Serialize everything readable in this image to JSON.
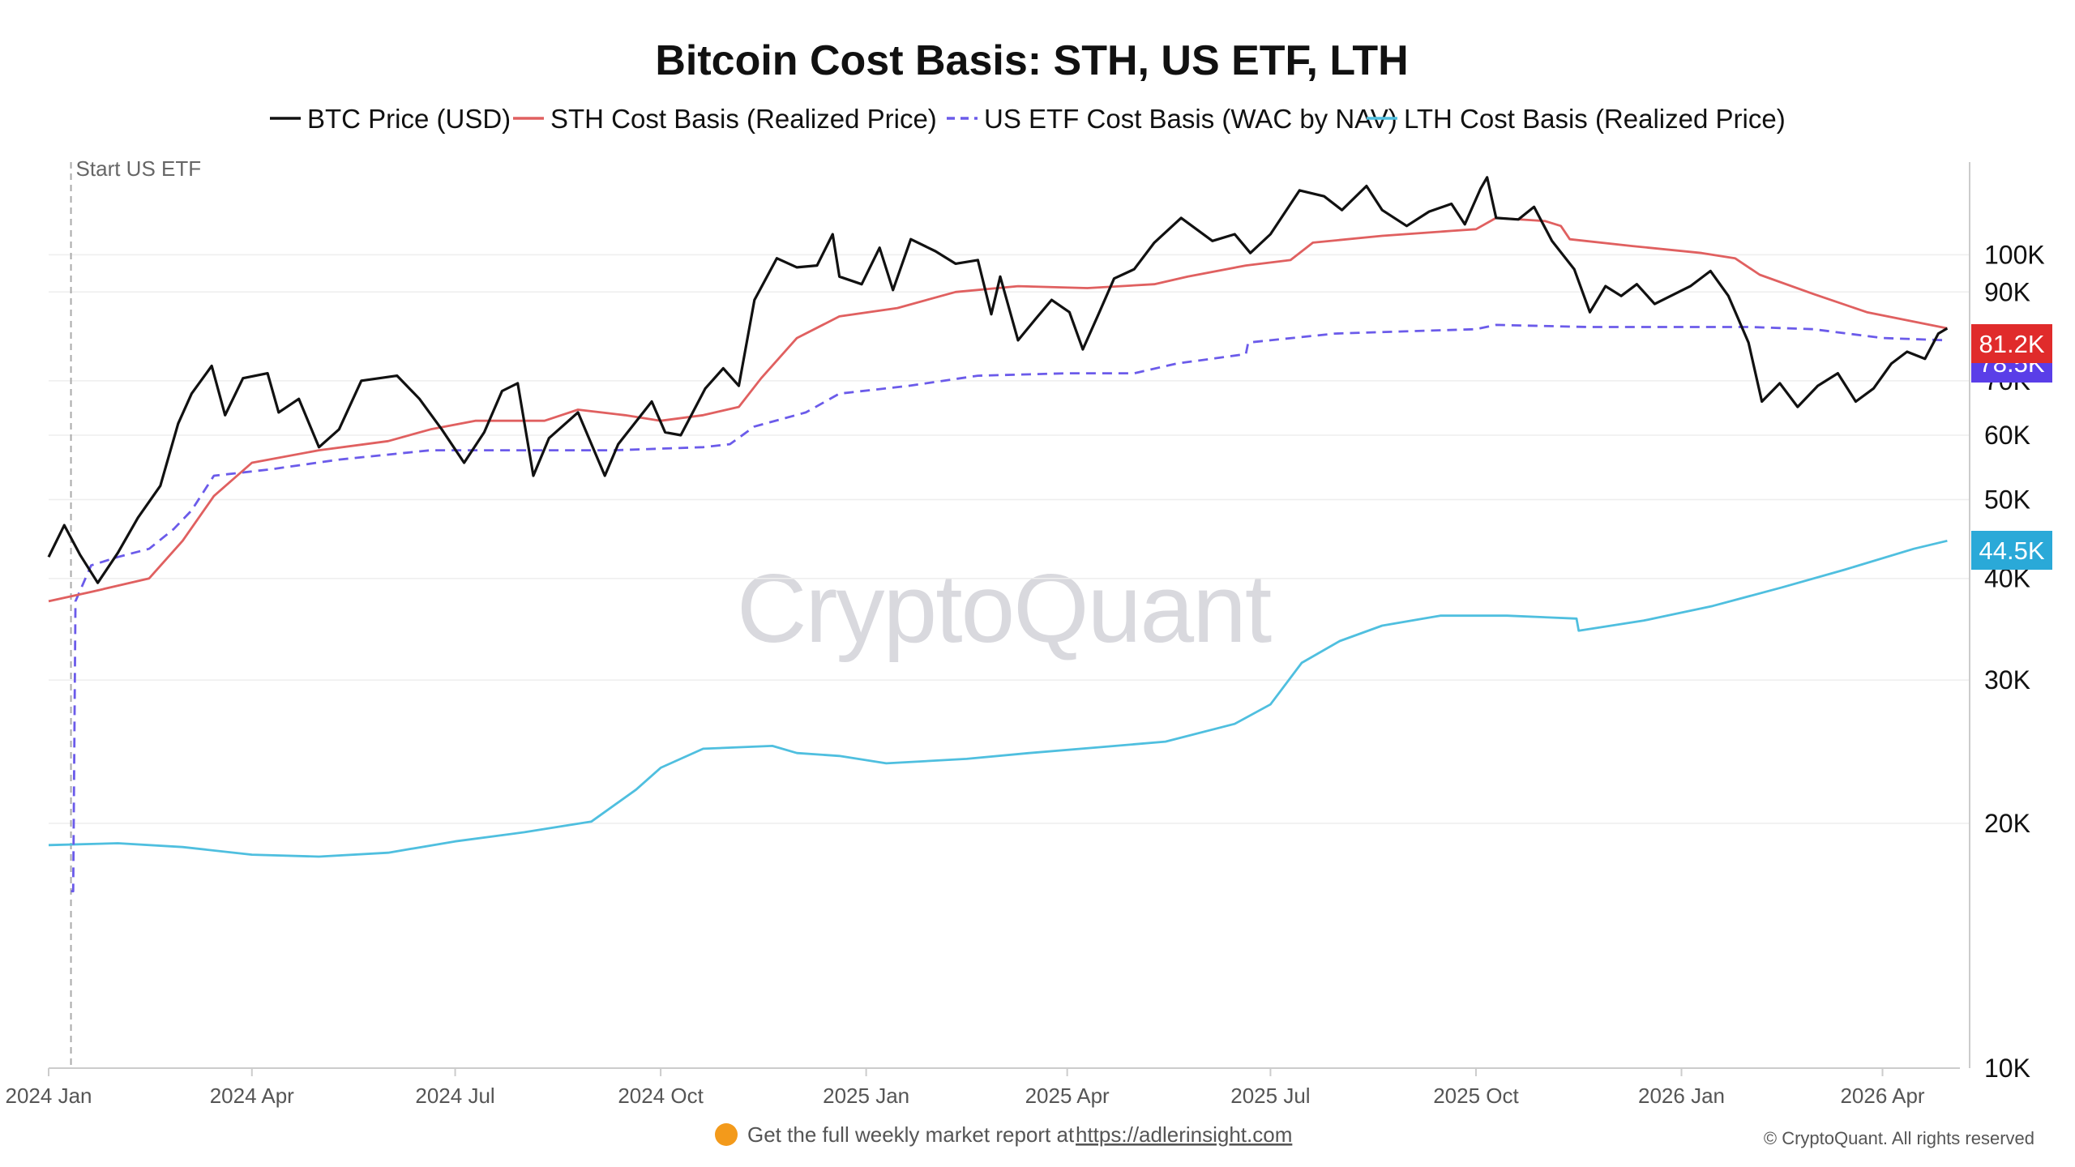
{
  "chart_data": {
    "type": "line",
    "title": "Bitcoin Cost Basis: STH, US ETF, LTH",
    "y_scale": "log",
    "ylim": [
      10000,
      130000
    ],
    "y_ticks": [
      {
        "value": 100000,
        "label": "100K"
      },
      {
        "value": 90000,
        "label": "90K"
      },
      {
        "value": 70000,
        "label": "70K"
      },
      {
        "value": 60000,
        "label": "60K"
      },
      {
        "value": 50000,
        "label": "50K"
      },
      {
        "value": 40000,
        "label": "40K"
      },
      {
        "value": 30000,
        "label": "30K"
      },
      {
        "value": 20000,
        "label": "20K"
      },
      {
        "value": 10000,
        "label": "10K"
      }
    ],
    "x_ticks": [
      {
        "value": "2024-01-01",
        "label": "2024 Jan"
      },
      {
        "value": "2024-04-01",
        "label": "2024 Apr"
      },
      {
        "value": "2024-07-01",
        "label": "2024 Jul"
      },
      {
        "value": "2024-10-01",
        "label": "2024 Oct"
      },
      {
        "value": "2025-01-01",
        "label": "2025 Jan"
      },
      {
        "value": "2025-04-01",
        "label": "2025 Apr"
      },
      {
        "value": "2025-07-01",
        "label": "2025 Jul"
      },
      {
        "value": "2025-10-01",
        "label": "2025 Oct"
      },
      {
        "value": "2026-01-01",
        "label": "2026 Jan"
      },
      {
        "value": "2026-04-01",
        "label": "2026 Apr"
      }
    ],
    "xlim": [
      "2024-01-01",
      "2026-05-10"
    ],
    "grid": true,
    "legend_position": "top",
    "annotation": {
      "date": "2024-01-11",
      "label": "Start US ETF"
    },
    "watermark": "CryptoQuant",
    "series": [
      {
        "name": "BTC Price (USD)",
        "color": "#111111",
        "style": "solid",
        "points": [
          [
            "2024-01-01",
            42500
          ],
          [
            "2024-01-08",
            46500
          ],
          [
            "2024-01-15",
            42800
          ],
          [
            "2024-01-23",
            39500
          ],
          [
            "2024-02-01",
            43000
          ],
          [
            "2024-02-10",
            47500
          ],
          [
            "2024-02-20",
            52000
          ],
          [
            "2024-02-28",
            62000
          ],
          [
            "2024-03-05",
            67500
          ],
          [
            "2024-03-14",
            73000
          ],
          [
            "2024-03-20",
            63500
          ],
          [
            "2024-03-28",
            70500
          ],
          [
            "2024-04-08",
            71500
          ],
          [
            "2024-04-13",
            64000
          ],
          [
            "2024-04-22",
            66500
          ],
          [
            "2024-05-01",
            58000
          ],
          [
            "2024-05-10",
            61000
          ],
          [
            "2024-05-20",
            70000
          ],
          [
            "2024-06-05",
            71000
          ],
          [
            "2024-06-15",
            66500
          ],
          [
            "2024-06-25",
            61000
          ],
          [
            "2024-07-05",
            55500
          ],
          [
            "2024-07-14",
            60500
          ],
          [
            "2024-07-22",
            68000
          ],
          [
            "2024-07-29",
            69500
          ],
          [
            "2024-08-05",
            53500
          ],
          [
            "2024-08-12",
            59500
          ],
          [
            "2024-08-25",
            64000
          ],
          [
            "2024-09-06",
            53500
          ],
          [
            "2024-09-12",
            58500
          ],
          [
            "2024-09-27",
            66000
          ],
          [
            "2024-10-03",
            60500
          ],
          [
            "2024-10-10",
            60000
          ],
          [
            "2024-10-21",
            68500
          ],
          [
            "2024-10-29",
            72500
          ],
          [
            "2024-11-05",
            69000
          ],
          [
            "2024-11-12",
            88000
          ],
          [
            "2024-11-22",
            99000
          ],
          [
            "2024-12-01",
            96500
          ],
          [
            "2024-12-10",
            97000
          ],
          [
            "2024-12-17",
            106000
          ],
          [
            "2024-12-20",
            94000
          ],
          [
            "2024-12-30",
            92000
          ],
          [
            "2025-01-07",
            102000
          ],
          [
            "2025-01-13",
            90500
          ],
          [
            "2025-01-21",
            104500
          ],
          [
            "2025-02-01",
            101000
          ],
          [
            "2025-02-10",
            97500
          ],
          [
            "2025-02-20",
            98500
          ],
          [
            "2025-02-26",
            84500
          ],
          [
            "2025-03-02",
            94000
          ],
          [
            "2025-03-10",
            78500
          ],
          [
            "2025-03-18",
            83500
          ],
          [
            "2025-03-25",
            88000
          ],
          [
            "2025-04-02",
            85000
          ],
          [
            "2025-04-08",
            76500
          ],
          [
            "2025-04-15",
            84500
          ],
          [
            "2025-04-22",
            93500
          ],
          [
            "2025-05-01",
            96000
          ],
          [
            "2025-05-10",
            103500
          ],
          [
            "2025-05-22",
            111000
          ],
          [
            "2025-06-05",
            104000
          ],
          [
            "2025-06-15",
            106000
          ],
          [
            "2025-06-22",
            100500
          ],
          [
            "2025-07-01",
            106000
          ],
          [
            "2025-07-14",
            120000
          ],
          [
            "2025-07-25",
            118000
          ],
          [
            "2025-08-02",
            113500
          ],
          [
            "2025-08-13",
            121500
          ],
          [
            "2025-08-20",
            113500
          ],
          [
            "2025-08-31",
            108500
          ],
          [
            "2025-09-10",
            113000
          ],
          [
            "2025-09-20",
            115500
          ],
          [
            "2025-09-26",
            109000
          ],
          [
            "2025-10-03",
            120500
          ],
          [
            "2025-10-06",
            124500
          ],
          [
            "2025-10-10",
            111000
          ],
          [
            "2025-10-20",
            110500
          ],
          [
            "2025-10-27",
            114500
          ],
          [
            "2025-11-04",
            104000
          ],
          [
            "2025-11-14",
            96000
          ],
          [
            "2025-11-21",
            85000
          ],
          [
            "2025-11-28",
            91500
          ],
          [
            "2025-12-05",
            89000
          ],
          [
            "2025-12-12",
            92000
          ],
          [
            "2025-12-20",
            87000
          ],
          [
            "2026-01-05",
            91500
          ],
          [
            "2026-01-14",
            95500
          ],
          [
            "2026-01-22",
            89000
          ],
          [
            "2026-01-31",
            78000
          ],
          [
            "2026-02-06",
            66000
          ],
          [
            "2026-02-14",
            69500
          ],
          [
            "2026-02-22",
            65000
          ],
          [
            "2026-03-03",
            69000
          ],
          [
            "2026-03-12",
            71500
          ],
          [
            "2026-03-20",
            66000
          ],
          [
            "2026-03-28",
            68500
          ],
          [
            "2026-04-05",
            73500
          ],
          [
            "2026-04-12",
            76000
          ],
          [
            "2026-04-20",
            74500
          ],
          [
            "2026-04-26",
            80000
          ],
          [
            "2026-04-30",
            81200
          ]
        ]
      },
      {
        "name": "STH Cost Basis (Realized Price)",
        "color": "#e06060",
        "style": "solid",
        "points": [
          [
            "2024-01-01",
            37500
          ],
          [
            "2024-01-20",
            38500
          ],
          [
            "2024-02-15",
            40000
          ],
          [
            "2024-03-01",
            44500
          ],
          [
            "2024-03-15",
            50500
          ],
          [
            "2024-04-01",
            55500
          ],
          [
            "2024-05-01",
            57500
          ],
          [
            "2024-06-01",
            59000
          ],
          [
            "2024-06-20",
            61000
          ],
          [
            "2024-07-10",
            62500
          ],
          [
            "2024-08-10",
            62500
          ],
          [
            "2024-08-25",
            64500
          ],
          [
            "2024-09-15",
            63500
          ],
          [
            "2024-10-01",
            62500
          ],
          [
            "2024-10-20",
            63500
          ],
          [
            "2024-11-05",
            65000
          ],
          [
            "2024-11-15",
            70500
          ],
          [
            "2024-12-01",
            79000
          ],
          [
            "2024-12-20",
            84000
          ],
          [
            "2025-01-15",
            86000
          ],
          [
            "2025-02-10",
            90000
          ],
          [
            "2025-03-10",
            91500
          ],
          [
            "2025-04-10",
            91000
          ],
          [
            "2025-05-10",
            92000
          ],
          [
            "2025-05-25",
            94000
          ],
          [
            "2025-06-20",
            97000
          ],
          [
            "2025-07-10",
            98500
          ],
          [
            "2025-07-20",
            103500
          ],
          [
            "2025-08-20",
            105500
          ],
          [
            "2025-09-20",
            107000
          ],
          [
            "2025-10-01",
            107500
          ],
          [
            "2025-10-10",
            111000
          ],
          [
            "2025-11-01",
            110000
          ],
          [
            "2025-11-08",
            108500
          ],
          [
            "2025-11-12",
            104500
          ],
          [
            "2025-12-10",
            102500
          ],
          [
            "2026-01-10",
            100500
          ],
          [
            "2026-01-25",
            99000
          ],
          [
            "2026-02-05",
            94500
          ],
          [
            "2026-03-01",
            89500
          ],
          [
            "2026-03-25",
            85000
          ],
          [
            "2026-04-30",
            81200
          ]
        ]
      },
      {
        "name": "US ETF Cost Basis (WAC by NAV)",
        "color": "#6b5bea",
        "style": "dashed",
        "points": [
          [
            "2024-01-11",
            16500
          ],
          [
            "2024-01-12",
            16500
          ],
          [
            "2024-01-13",
            37500
          ],
          [
            "2024-01-20",
            41500
          ],
          [
            "2024-02-01",
            42500
          ],
          [
            "2024-02-15",
            43500
          ],
          [
            "2024-02-26",
            46000
          ],
          [
            "2024-03-05",
            48500
          ],
          [
            "2024-03-15",
            53500
          ],
          [
            "2024-04-10",
            54500
          ],
          [
            "2024-05-10",
            56000
          ],
          [
            "2024-06-20",
            57500
          ],
          [
            "2024-08-01",
            57500
          ],
          [
            "2024-09-10",
            57500
          ],
          [
            "2024-10-20",
            58000
          ],
          [
            "2024-11-01",
            58500
          ],
          [
            "2024-11-12",
            61500
          ],
          [
            "2024-12-05",
            64000
          ],
          [
            "2024-12-20",
            67500
          ],
          [
            "2025-01-20",
            69000
          ],
          [
            "2025-02-20",
            71000
          ],
          [
            "2025-04-01",
            71500
          ],
          [
            "2025-05-01",
            71500
          ],
          [
            "2025-05-20",
            73500
          ],
          [
            "2025-06-20",
            75500
          ],
          [
            "2025-06-21",
            78000
          ],
          [
            "2025-07-30",
            80000
          ],
          [
            "2025-08-30",
            80500
          ],
          [
            "2025-10-01",
            81000
          ],
          [
            "2025-10-10",
            82000
          ],
          [
            "2025-11-20",
            81500
          ],
          [
            "2026-01-01",
            81500
          ],
          [
            "2026-02-01",
            81500
          ],
          [
            "2026-03-01",
            81000
          ],
          [
            "2026-04-01",
            79000
          ],
          [
            "2026-04-30",
            78500
          ]
        ]
      },
      {
        "name": "LTH Cost Basis (Realized Price)",
        "color": "#4fbfdf",
        "style": "solid",
        "points": [
          [
            "2024-01-01",
            18800
          ],
          [
            "2024-02-01",
            18900
          ],
          [
            "2024-03-01",
            18700
          ],
          [
            "2024-04-01",
            18300
          ],
          [
            "2024-05-01",
            18200
          ],
          [
            "2024-06-01",
            18400
          ],
          [
            "2024-07-01",
            19000
          ],
          [
            "2024-08-01",
            19500
          ],
          [
            "2024-08-31",
            20100
          ],
          [
            "2024-09-20",
            22000
          ],
          [
            "2024-10-01",
            23400
          ],
          [
            "2024-10-20",
            24700
          ],
          [
            "2024-11-20",
            24900
          ],
          [
            "2024-12-01",
            24400
          ],
          [
            "2024-12-20",
            24200
          ],
          [
            "2025-01-10",
            23700
          ],
          [
            "2025-02-15",
            24000
          ],
          [
            "2025-03-15",
            24400
          ],
          [
            "2025-04-15",
            24800
          ],
          [
            "2025-05-15",
            25200
          ],
          [
            "2025-06-15",
            26500
          ],
          [
            "2025-07-01",
            28000
          ],
          [
            "2025-07-15",
            31500
          ],
          [
            "2025-08-01",
            33500
          ],
          [
            "2025-08-20",
            35000
          ],
          [
            "2025-09-15",
            36000
          ],
          [
            "2025-10-15",
            36000
          ],
          [
            "2025-11-15",
            35700
          ],
          [
            "2025-11-16",
            34500
          ],
          [
            "2025-12-15",
            35500
          ],
          [
            "2026-01-15",
            37000
          ],
          [
            "2026-02-15",
            39000
          ],
          [
            "2026-03-15",
            41000
          ],
          [
            "2026-04-15",
            43500
          ],
          [
            "2026-04-30",
            44500
          ]
        ]
      }
    ],
    "value_badges": [
      {
        "label": "81.2K",
        "value": 81200,
        "color": "#e02b2b"
      },
      {
        "label": "78.5K",
        "value": 78500,
        "color": "#5a3ee8"
      },
      {
        "label": "44.5K",
        "value": 44500,
        "color": "#2aa9d8"
      }
    ]
  },
  "footer": {
    "icon": "orange-circle-icon",
    "text": "Get the full weekly market report at",
    "link_text": "https://adlerinsight.com"
  },
  "copyright": "© CryptoQuant. All rights reserved"
}
